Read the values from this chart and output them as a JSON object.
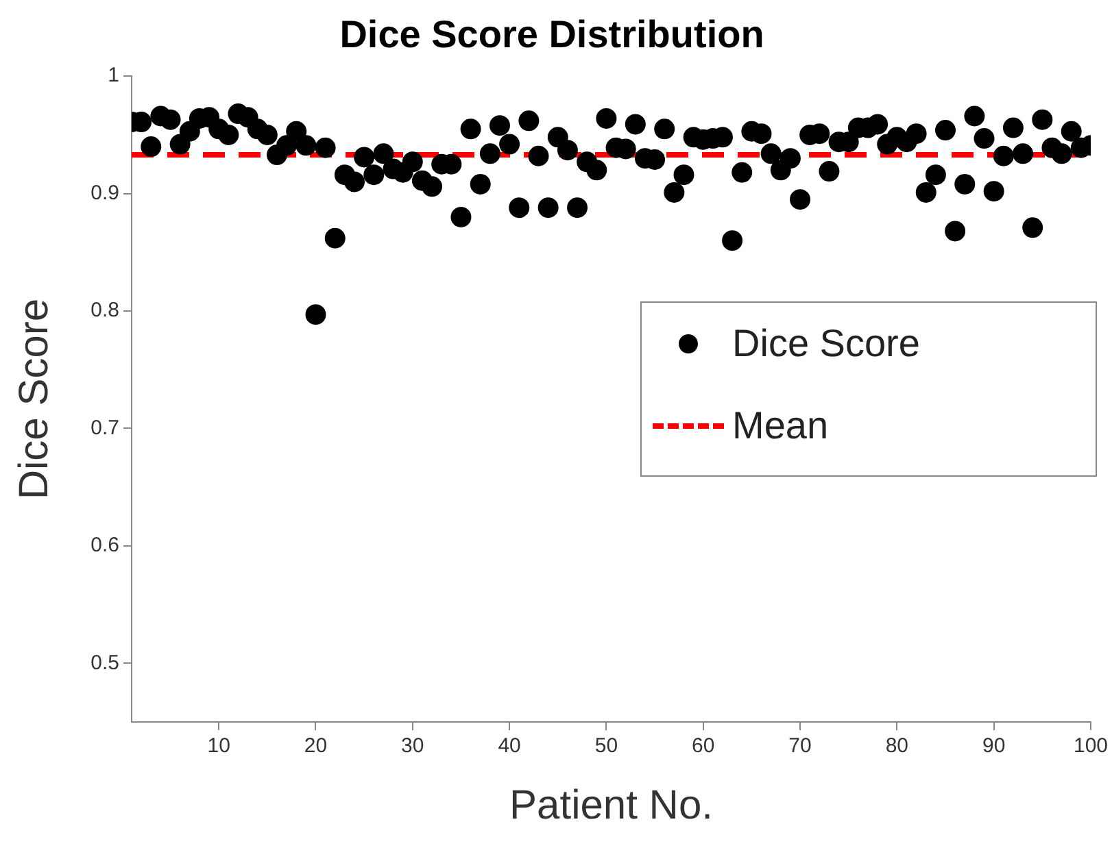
{
  "chart_data": {
    "type": "scatter",
    "title": "Dice Score Distribution",
    "xlabel": "Patient No.",
    "ylabel": "Dice Score",
    "x": [
      1,
      2,
      3,
      4,
      5,
      6,
      7,
      8,
      9,
      10,
      11,
      12,
      13,
      14,
      15,
      16,
      17,
      18,
      19,
      20,
      21,
      22,
      23,
      24,
      25,
      26,
      27,
      28,
      29,
      30,
      31,
      32,
      33,
      34,
      35,
      36,
      37,
      38,
      39,
      40,
      41,
      42,
      43,
      44,
      45,
      46,
      47,
      48,
      49,
      50,
      51,
      52,
      53,
      54,
      55,
      56,
      57,
      58,
      59,
      60,
      61,
      62,
      63,
      64,
      65,
      66,
      67,
      68,
      69,
      70,
      71,
      72,
      73,
      74,
      75,
      76,
      77,
      78,
      79,
      80,
      81,
      82,
      83,
      84,
      85,
      86,
      87,
      88,
      89,
      90,
      91,
      92,
      93,
      94,
      95,
      96,
      97,
      98,
      99,
      100
    ],
    "series": [
      {
        "name": "Dice Score",
        "color": "#000000",
        "values": [
          0.961,
          0.961,
          0.94,
          0.966,
          0.963,
          0.942,
          0.953,
          0.964,
          0.965,
          0.955,
          0.95,
          0.968,
          0.965,
          0.955,
          0.95,
          0.933,
          0.941,
          0.953,
          0.941,
          0.797,
          0.939,
          0.862,
          0.916,
          0.91,
          0.931,
          0.916,
          0.934,
          0.921,
          0.918,
          0.927,
          0.911,
          0.906,
          0.925,
          0.925,
          0.88,
          0.955,
          0.908,
          0.934,
          0.958,
          0.942,
          0.888,
          0.962,
          0.932,
          0.888,
          0.948,
          0.937,
          0.888,
          0.927,
          0.92,
          0.964,
          0.939,
          0.938,
          0.959,
          0.93,
          0.929,
          0.955,
          0.901,
          0.916,
          0.948,
          0.946,
          0.947,
          0.948,
          0.86,
          0.918,
          0.953,
          0.951,
          0.934,
          0.92,
          0.93,
          0.895,
          0.95,
          0.951,
          0.919,
          0.944,
          0.944,
          0.956,
          0.956,
          0.959,
          0.942,
          0.948,
          0.944,
          0.951,
          0.901,
          0.916,
          0.954,
          0.868,
          0.908,
          0.966,
          0.947,
          0.902,
          0.932,
          0.956,
          0.934,
          0.871,
          0.963,
          0.939,
          0.934,
          0.953,
          0.939,
          0.941
        ]
      }
    ],
    "ref_lines": [
      {
        "axis": "y",
        "value": 0.933,
        "label": "Mean",
        "color": "#ff0000",
        "line_style": "dashed"
      }
    ],
    "xlim": [
      1,
      100
    ],
    "xticks": [
      10,
      20,
      30,
      40,
      50,
      60,
      70,
      80,
      90,
      100
    ],
    "ylim": [
      0.45,
      1
    ],
    "yticks": [
      0.5,
      0.6,
      0.7,
      0.8,
      0.9,
      1
    ],
    "grid": false,
    "legend": "right",
    "marker": "circle"
  }
}
